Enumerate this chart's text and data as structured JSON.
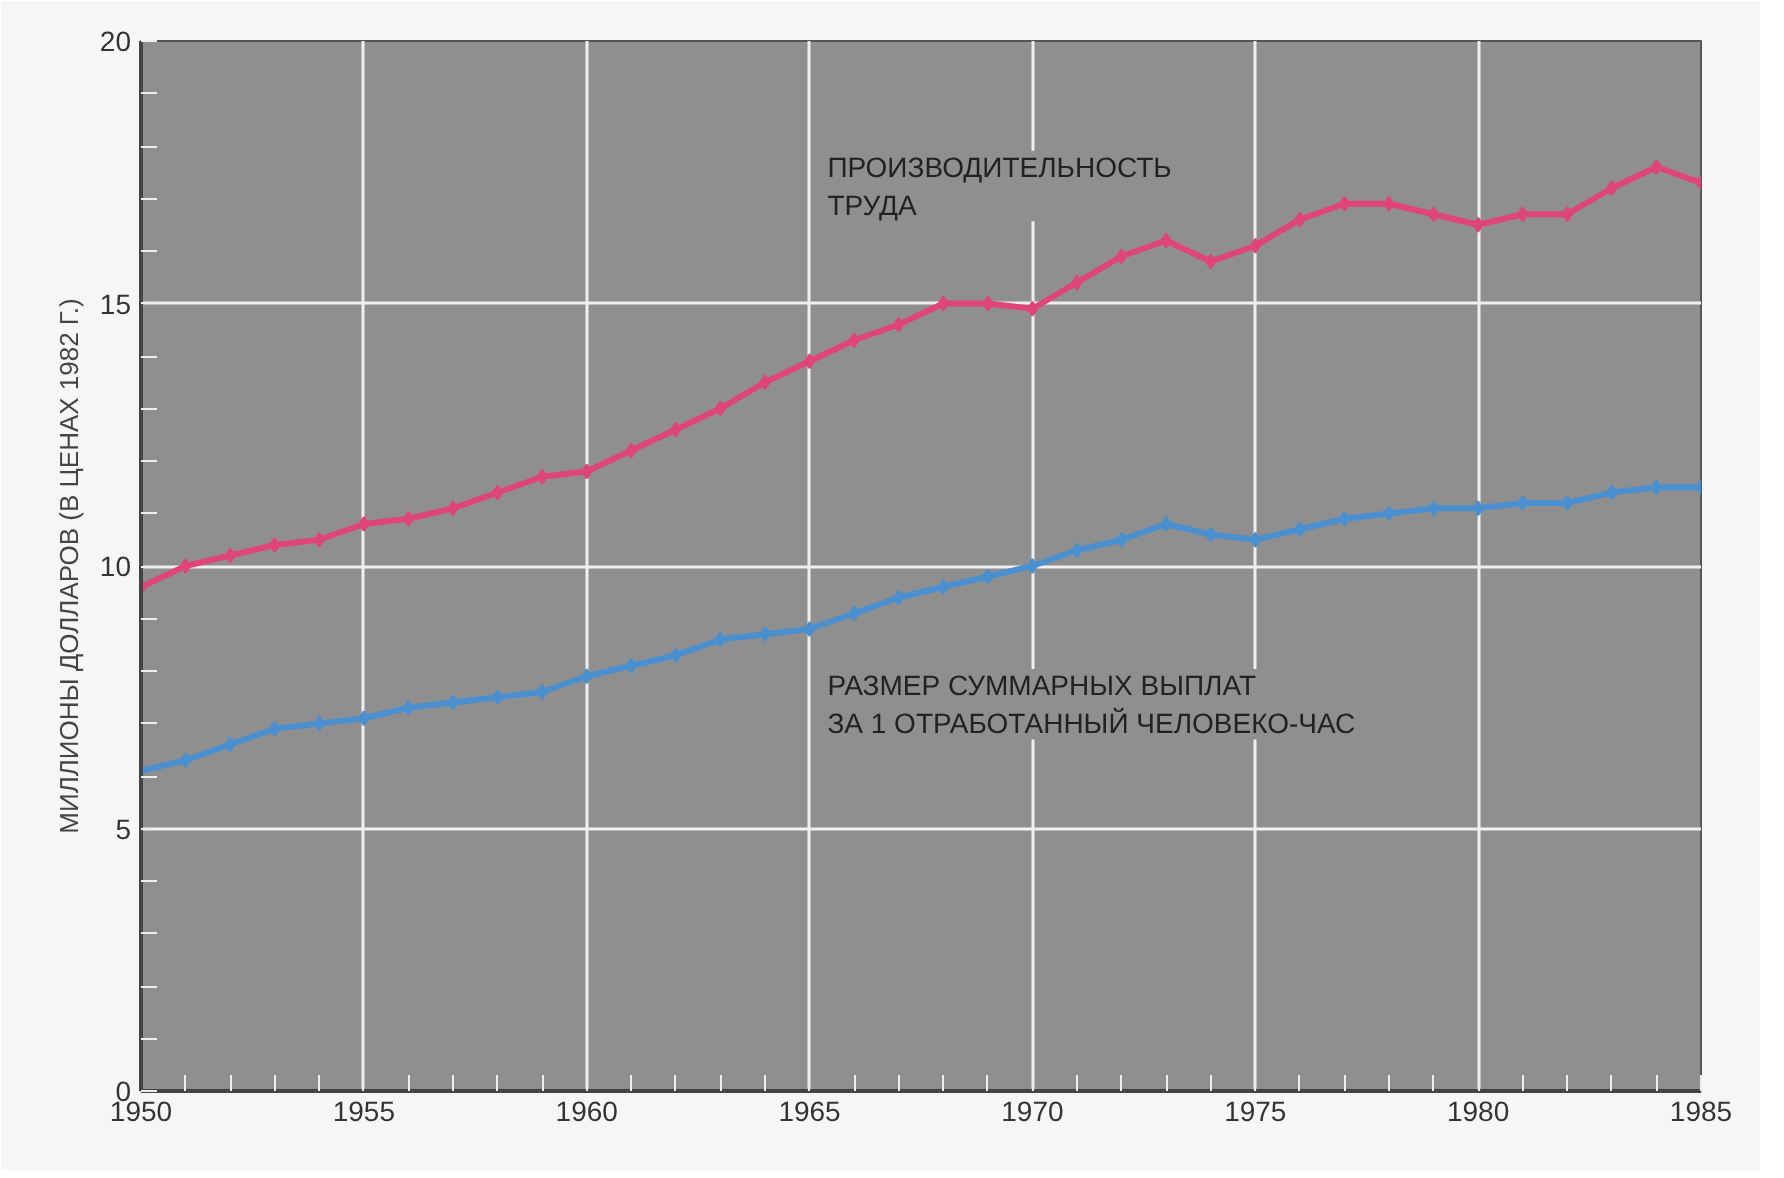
{
  "chart_data": {
    "type": "line",
    "ylabel": "МИЛЛИОНЫ ДОЛЛАРОВ (В ЦЕНАХ 1982 Г.)",
    "x": [
      1950,
      1951,
      1952,
      1953,
      1954,
      1955,
      1956,
      1957,
      1958,
      1959,
      1960,
      1961,
      1962,
      1963,
      1964,
      1965,
      1966,
      1967,
      1968,
      1969,
      1970,
      1971,
      1972,
      1973,
      1974,
      1975,
      1976,
      1977,
      1978,
      1979,
      1980,
      1981,
      1982,
      1983,
      1984,
      1985
    ],
    "series": [
      {
        "name": "ПРОИЗВОДИТЕЛЬНОСТЬ\nТРУДА",
        "color": "#e0457a",
        "values": [
          9.6,
          10.0,
          10.2,
          10.4,
          10.5,
          10.8,
          10.9,
          11.1,
          11.4,
          11.7,
          11.8,
          12.2,
          12.6,
          13.0,
          13.5,
          13.9,
          14.3,
          14.6,
          15.0,
          15.0,
          14.9,
          15.4,
          15.9,
          16.2,
          15.8,
          16.1,
          16.6,
          16.9,
          16.9,
          16.7,
          16.5,
          16.7,
          16.7,
          17.2,
          17.6,
          17.3
        ]
      },
      {
        "name": "РАЗМЕР СУММАРНЫХ ВЫПЛАТ\nЗА 1 ОТРАБОТАННЫЙ ЧЕЛОВЕКО-ЧАС",
        "color": "#4a90d0",
        "values": [
          6.1,
          6.3,
          6.6,
          6.9,
          7.0,
          7.1,
          7.3,
          7.4,
          7.5,
          7.6,
          7.9,
          8.1,
          8.3,
          8.6,
          8.7,
          8.8,
          9.1,
          9.4,
          9.6,
          9.8,
          10.0,
          10.3,
          10.5,
          10.8,
          10.6,
          10.5,
          10.7,
          10.9,
          11.0,
          11.1,
          11.1,
          11.2,
          11.2,
          11.4,
          11.5,
          11.5
        ]
      }
    ],
    "xlim": [
      1950,
      1985
    ],
    "ylim": [
      0,
      20
    ],
    "xticks": [
      1950,
      {
        "value": 1951,
        "label": null
      },
      {
        "value": 1952,
        "label": null
      },
      {
        "value": 1953,
        "label": null
      },
      {
        "value": 1954,
        "label": null
      },
      1955,
      {
        "value": 1956,
        "label": null
      },
      {
        "value": 1957,
        "label": null
      },
      {
        "value": 1958,
        "label": null
      },
      {
        "value": 1959,
        "label": null
      },
      1960,
      {
        "value": 1961,
        "label": null
      },
      {
        "value": 1962,
        "label": null
      },
      {
        "value": 1963,
        "label": null
      },
      {
        "value": 1964,
        "label": null
      },
      1965,
      {
        "value": 1966,
        "label": null
      },
      {
        "value": 1967,
        "label": null
      },
      {
        "value": 1968,
        "label": null
      },
      {
        "value": 1969,
        "label": null
      },
      1970,
      {
        "value": 1971,
        "label": null
      },
      {
        "value": 1972,
        "label": null
      },
      {
        "value": 1973,
        "label": null
      },
      {
        "value": 1974,
        "label": null
      },
      1975,
      {
        "value": 1976,
        "label": null
      },
      {
        "value": 1977,
        "label": null
      },
      {
        "value": 1978,
        "label": null
      },
      {
        "value": 1979,
        "label": null
      },
      1980,
      {
        "value": 1981,
        "label": null
      },
      {
        "value": 1982,
        "label": null
      },
      {
        "value": 1983,
        "label": null
      },
      {
        "value": 1984,
        "label": null
      },
      1985
    ],
    "yticks": [
      0,
      {
        "value": 1,
        "label": null
      },
      {
        "value": 2,
        "label": null
      },
      {
        "value": 3,
        "label": null
      },
      {
        "value": 4,
        "label": null
      },
      5,
      {
        "value": 6,
        "label": null
      },
      {
        "value": 7,
        "label": null
      },
      {
        "value": 8,
        "label": null
      },
      {
        "value": 9,
        "label": null
      },
      10,
      {
        "value": 11,
        "label": null
      },
      {
        "value": 12,
        "label": null
      },
      {
        "value": 13,
        "label": null
      },
      {
        "value": 14,
        "label": null
      },
      15,
      {
        "value": 16,
        "label": null
      },
      {
        "value": 17,
        "label": null
      },
      {
        "value": 18,
        "label": null
      },
      {
        "value": 19,
        "label": null
      },
      20
    ],
    "grid": true,
    "marker": "diamond",
    "line_style": "solid"
  }
}
